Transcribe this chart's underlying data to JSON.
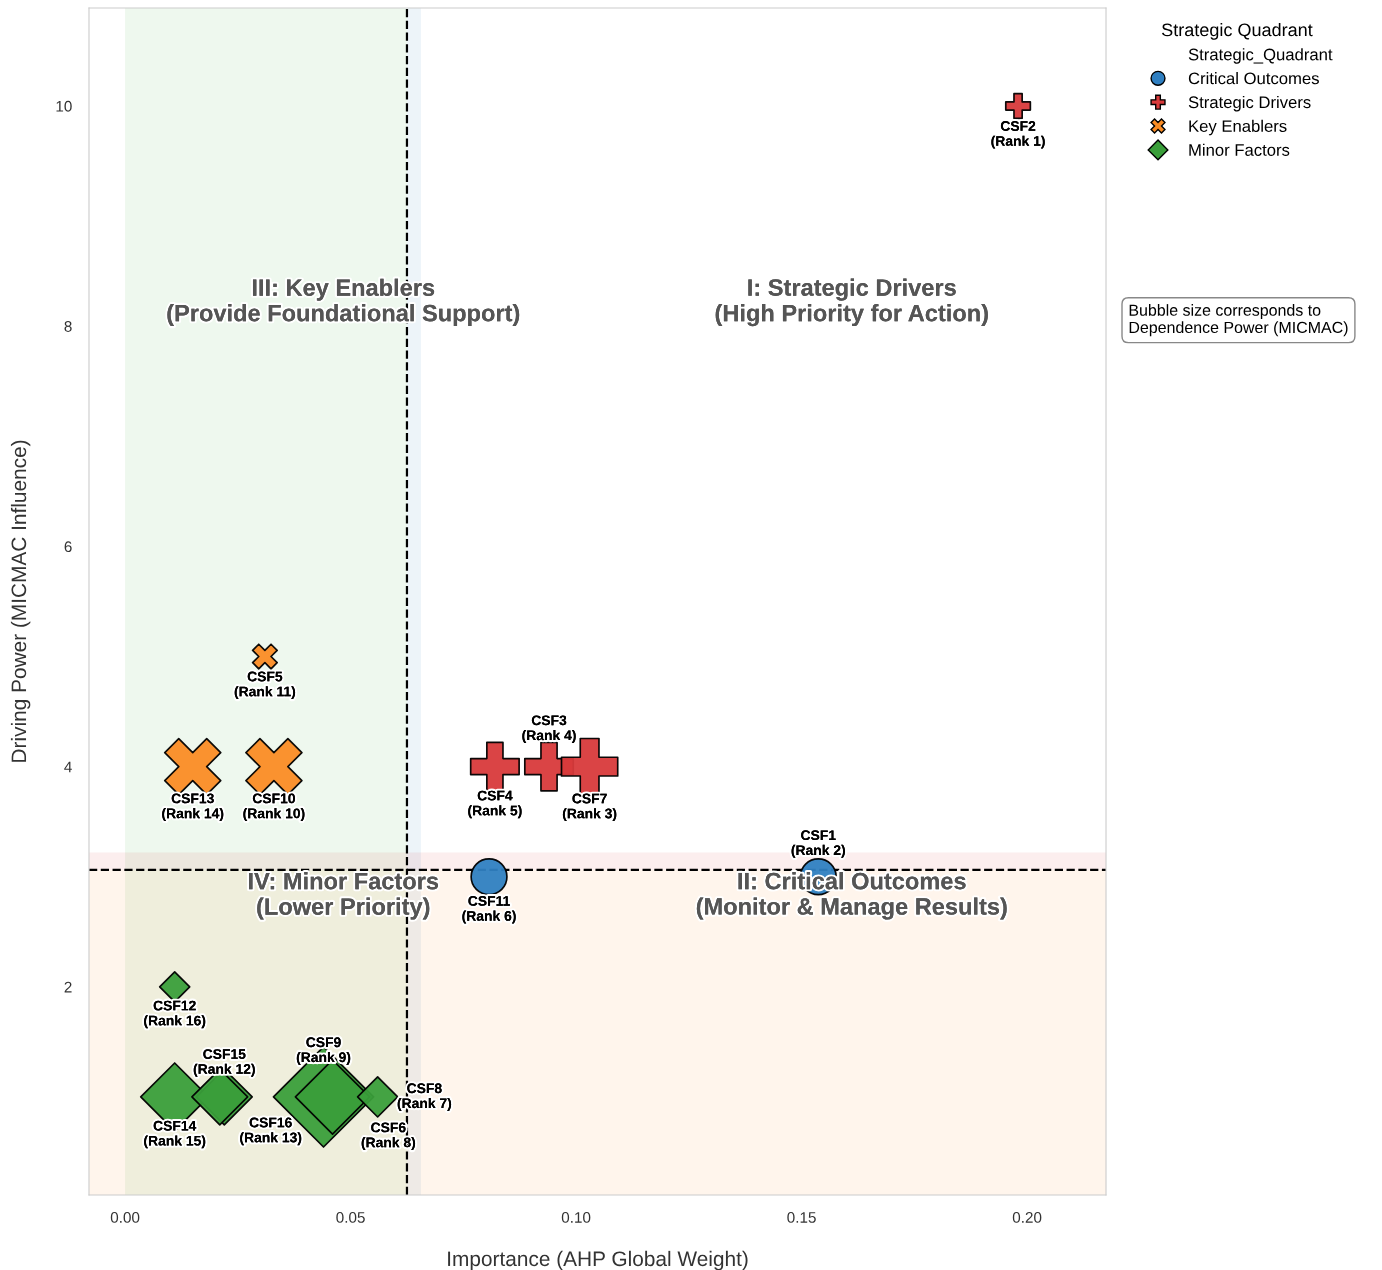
{
  "chart_data": {
    "type": "bubble",
    "xlabel": "Importance (AHP Global Weight)",
    "ylabel": "Driving Power (MICMAC Influence)",
    "legend_title": "Strategic Quadrant",
    "legend": "top right",
    "grid": false,
    "xlim": [
      -0.008,
      0.2175
    ],
    "ylim": [
      0.11,
      10.89
    ],
    "xticks": [
      {
        "value": 0,
        "label": "0.00"
      },
      {
        "value": 0.05,
        "label": "0.05"
      },
      {
        "value": 0.1,
        "label": "0.10"
      },
      {
        "value": 0.15,
        "label": "0.15"
      },
      {
        "value": 0.2,
        "label": "0.20"
      }
    ],
    "yticks": [
      2,
      4,
      6,
      8,
      10
    ],
    "ref_lines": [
      {
        "axis": "x",
        "value": 0.0625,
        "line_style": "dashed",
        "color": "#000000"
      },
      {
        "axis": "y",
        "value": 3.0625,
        "line_style": "dashed",
        "color": "#000000"
      }
    ],
    "bands": [
      {
        "axis": "x",
        "from": 0,
        "to": 0.0625,
        "color": "#2ca02c"
      },
      {
        "axis": "x",
        "from": 0.0625,
        "to": 0.0656,
        "color": "#1f77b4"
      },
      {
        "axis": "y",
        "from": 0.11,
        "to": 3.0625,
        "color": "#ff7f0e"
      },
      {
        "axis": "y",
        "from": 3.0625,
        "to": 3.22,
        "color": "#d62728"
      }
    ],
    "annotations": [
      "III: Key Enablers\n(Provide Foundational Support)",
      "I: Strategic Drivers\n(High Priority for Action)",
      "IV: Minor Factors\n(Lower Priority)",
      "II: Critical Outcomes\n(Monitor & Manage Results)",
      "Bubble size corresponds to\nDependence Power (MICMAC)",
      "Strategic_Quadrant"
    ],
    "series": [
      {
        "name": "Critical Outcomes",
        "color": "#2f7fc1",
        "marker": "circle",
        "x": [
          0.0807,
          0.1537
        ],
        "values": [
          3.0,
          3.0
        ],
        "sizes": [
          0.2,
          0.2
        ],
        "value_labels": [
          "CSF11\n(Rank 6)",
          "CSF1\n(Rank 2)"
        ]
      },
      {
        "name": "Strategic Drivers",
        "color": "#d83a3b",
        "marker": "plus",
        "x": [
          0.198,
          0.082,
          0.094,
          0.103
        ],
        "values": [
          10.0,
          4.0,
          4.0,
          4.0
        ],
        "sizes": [
          0.067,
          0.26,
          0.26,
          0.35
        ],
        "value_labels": [
          "CSF2\n(Rank 1)",
          "CSF4\n(Rank 5)",
          "CSF3\n(Rank 4)",
          "CSF7\n(Rank 3)"
        ]
      },
      {
        "name": "Key Enablers",
        "color": "#fa8c24",
        "marker": "cross",
        "x": [
          0.031,
          0.015,
          0.033
        ],
        "values": [
          5.0,
          4.0,
          4.0
        ],
        "sizes": [
          0.075,
          0.39,
          0.39
        ],
        "value_labels": [
          "CSF5\n(Rank 11)",
          "CSF13\n(Rank 14)",
          "CSF10\n(Rank 10)"
        ]
      },
      {
        "name": "Minor Factors",
        "color": "#3a9e3a",
        "marker": "diamond",
        "x": [
          0.011,
          0.011,
          0.022,
          0.021,
          0.044,
          0.046,
          0.056
        ],
        "values": [
          2.0,
          1.0,
          1.0,
          1.0,
          1.0,
          1.0,
          1.0
        ],
        "sizes": [
          0.09,
          0.46,
          0.31,
          0.31,
          1.0,
          0.55,
          0.16
        ],
        "value_labels": [
          "CSF12\n(Rank 16)",
          "CSF14\n(Rank 15)",
          "CSF15\n(Rank 12)",
          "CSF16\n(Rank 13)",
          "CSF9\n(Rank 9)",
          "CSF6\n(Rank 8)",
          "CSF8\n(Rank 7)"
        ]
      }
    ]
  }
}
